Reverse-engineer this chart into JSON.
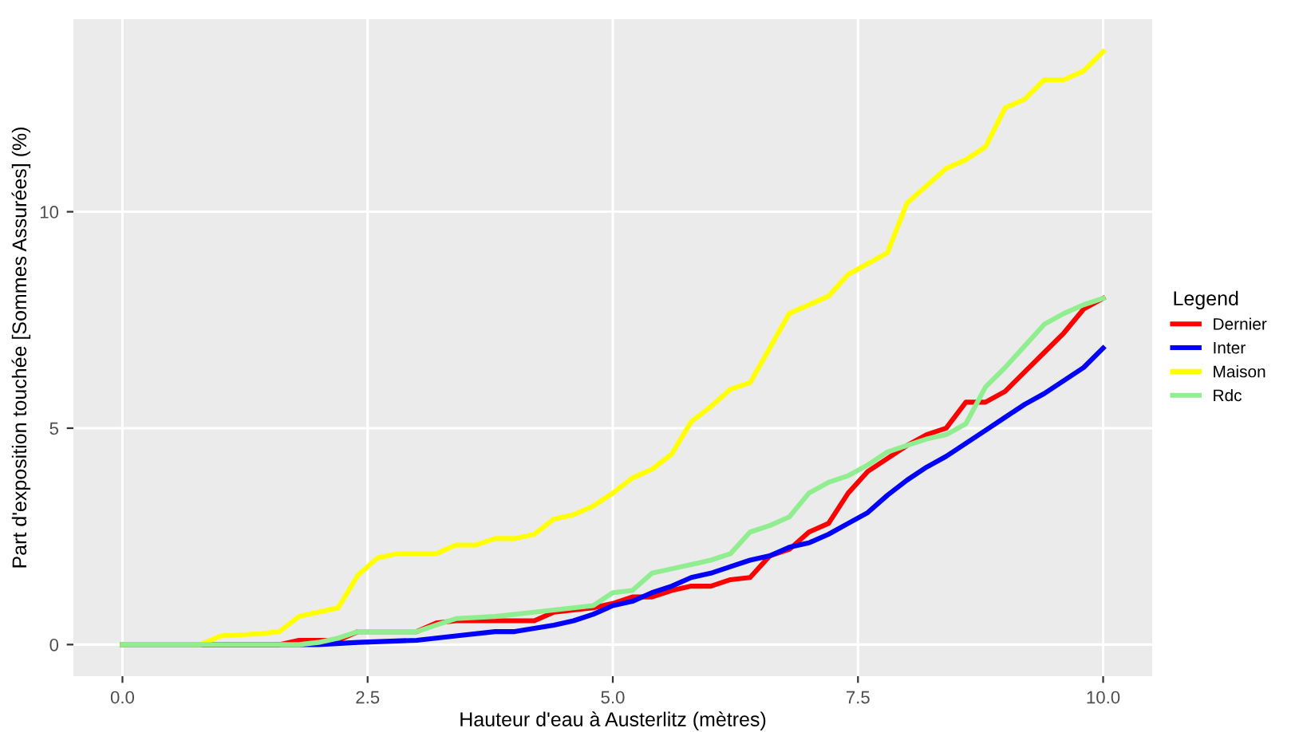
{
  "chart_data": {
    "type": "line",
    "xlabel": "Hauteur d'eau à Austerlitz (mètres)",
    "ylabel": "Part d'exposition touchée [Sommes Assurées] (%)",
    "legend_title": "Legend",
    "legend": "right",
    "grid": true,
    "xlim": [
      -0.5,
      10.5
    ],
    "ylim": [
      -0.73,
      14.45
    ],
    "xticks": [
      {
        "value": 0,
        "label": "0.0"
      },
      {
        "value": 2.5,
        "label": "2.5"
      },
      {
        "value": 5,
        "label": "5.0"
      },
      {
        "value": 7.5,
        "label": "7.5"
      },
      {
        "value": 10,
        "label": "10.0"
      }
    ],
    "yticks": [
      0,
      5,
      10
    ],
    "series": [
      {
        "name": "Dernier",
        "color": "#ff0000",
        "x": [
          0,
          1.6,
          1.8,
          2.2,
          2.4,
          3.0,
          3.2,
          3.4,
          4.2,
          4.4,
          4.8,
          5.0,
          5.2,
          5.4,
          5.6,
          5.8,
          6.0,
          6.2,
          6.4,
          6.6,
          6.8,
          7.0,
          7.2,
          7.4,
          7.6,
          7.8,
          8.0,
          8.2,
          8.4,
          8.6,
          8.8,
          9.0,
          9.2,
          9.4,
          9.6,
          9.8,
          10
        ],
        "values": [
          0,
          0,
          0.1,
          0.1,
          0.3,
          0.3,
          0.5,
          0.55,
          0.55,
          0.75,
          0.85,
          0.95,
          1.1,
          1.1,
          1.25,
          1.35,
          1.35,
          1.5,
          1.55,
          2.05,
          2.2,
          2.6,
          2.8,
          3.5,
          4.0,
          4.3,
          4.6,
          4.85,
          5.0,
          5.6,
          5.6,
          5.85,
          6.3,
          6.75,
          7.2,
          7.75,
          8.0
        ]
      },
      {
        "name": "Inter",
        "color": "#0000ff",
        "x": [
          0,
          2.0,
          2.4,
          3.0,
          3.4,
          3.8,
          4.0,
          4.4,
          4.6,
          4.8,
          5.0,
          5.2,
          5.4,
          5.6,
          5.8,
          6.0,
          6.2,
          6.4,
          6.6,
          6.8,
          7.0,
          7.2,
          7.4,
          7.6,
          7.8,
          8.0,
          8.2,
          8.4,
          8.6,
          8.8,
          9.0,
          9.2,
          9.4,
          9.6,
          9.8,
          10
        ],
        "values": [
          0,
          0,
          0.05,
          0.1,
          0.2,
          0.3,
          0.3,
          0.45,
          0.55,
          0.7,
          0.9,
          1.0,
          1.2,
          1.35,
          1.55,
          1.65,
          1.8,
          1.95,
          2.05,
          2.25,
          2.35,
          2.55,
          2.8,
          3.05,
          3.45,
          3.8,
          4.1,
          4.35,
          4.65,
          4.95,
          5.25,
          5.55,
          5.8,
          6.1,
          6.4,
          6.85
        ]
      },
      {
        "name": "Maison",
        "color": "#ffff00",
        "x": [
          0,
          0.8,
          1.0,
          1.4,
          1.6,
          1.8,
          2.2,
          2.4,
          2.6,
          2.8,
          3.2,
          3.4,
          3.6,
          3.8,
          4.0,
          4.2,
          4.4,
          4.6,
          4.8,
          5.0,
          5.2,
          5.4,
          5.6,
          5.8,
          6.0,
          6.2,
          6.4,
          6.6,
          6.8,
          7.0,
          7.2,
          7.4,
          7.6,
          7.8,
          8.0,
          8.2,
          8.4,
          8.6,
          8.8,
          9.0,
          9.2,
          9.4,
          9.6,
          9.8,
          10
        ],
        "values": [
          0,
          0,
          0.2,
          0.25,
          0.3,
          0.65,
          0.85,
          1.6,
          2.0,
          2.1,
          2.1,
          2.3,
          2.3,
          2.45,
          2.45,
          2.55,
          2.9,
          3.0,
          3.2,
          3.5,
          3.85,
          4.05,
          4.4,
          5.15,
          5.5,
          5.9,
          6.05,
          6.85,
          7.65,
          7.85,
          8.05,
          8.55,
          8.8,
          9.05,
          10.2,
          10.6,
          11.0,
          11.2,
          11.5,
          12.4,
          12.6,
          13.05,
          13.05,
          13.25,
          13.7
        ]
      },
      {
        "name": "Rdc",
        "color": "#90ee90",
        "x": [
          0,
          1.8,
          2.0,
          2.2,
          2.4,
          3.0,
          3.2,
          3.4,
          3.8,
          4.2,
          4.4,
          4.8,
          5.0,
          5.2,
          5.4,
          5.6,
          5.8,
          6.0,
          6.2,
          6.4,
          6.6,
          6.8,
          7.0,
          7.2,
          7.4,
          7.6,
          7.8,
          8.0,
          8.2,
          8.4,
          8.6,
          8.8,
          9.0,
          9.2,
          9.4,
          9.6,
          9.8,
          10
        ],
        "values": [
          0,
          0,
          0.05,
          0.15,
          0.3,
          0.3,
          0.45,
          0.6,
          0.65,
          0.75,
          0.8,
          0.9,
          1.2,
          1.25,
          1.65,
          1.75,
          1.85,
          1.95,
          2.1,
          2.6,
          2.75,
          2.95,
          3.5,
          3.75,
          3.9,
          4.15,
          4.45,
          4.6,
          4.75,
          4.85,
          5.1,
          5.95,
          6.4,
          6.9,
          7.4,
          7.65,
          7.85,
          8.0
        ]
      }
    ]
  }
}
